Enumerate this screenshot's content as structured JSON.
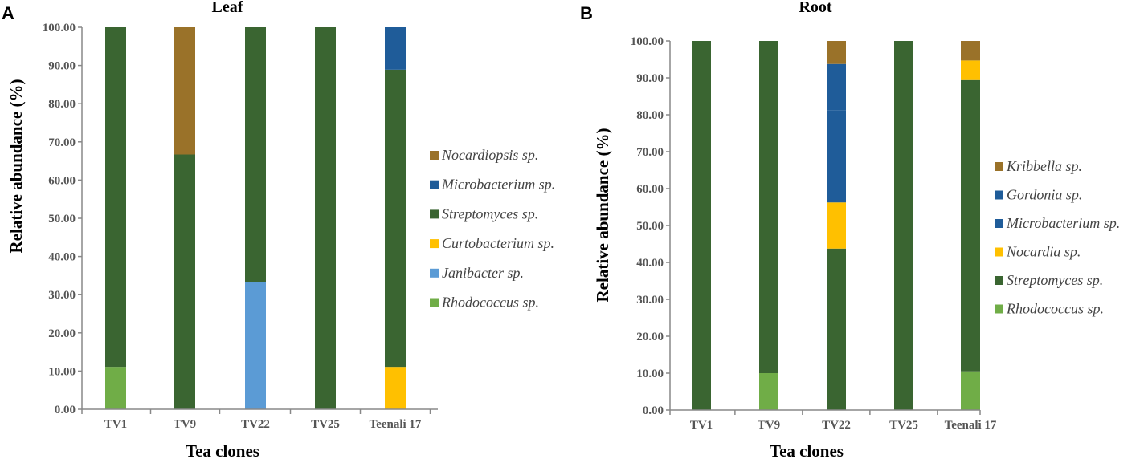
{
  "colors": {
    "Rhodococcus sp.": "#70ad47",
    "Janibacter sp.": "#5b9bd5",
    "Curtobacterium sp.": "#ffc000",
    "Streptomyces sp.": "#3a6531",
    "Microbacterium sp.": "#1f5c99",
    "Nocardiopsis sp.": "#9a7229",
    "Nocardia sp.": "#ffc000",
    "Gordonia sp.": "#1f5c99",
    "Kribbella sp.": "#9a7229"
  },
  "chart_data": [
    {
      "panel": "A",
      "type": "bar",
      "stacked": true,
      "title": "Leaf",
      "xlabel": "Tea clones",
      "ylabel": "Relative abundance  (%)",
      "ylim": [
        0,
        100
      ],
      "yticks": [
        "0.00",
        "10.00",
        "20.00",
        "30.00",
        "40.00",
        "50.00",
        "60.00",
        "70.00",
        "80.00",
        "90.00",
        "100.00"
      ],
      "categories": [
        "TV1",
        "TV9",
        "TV22",
        "TV25",
        "Teenali 17"
      ],
      "series": [
        {
          "name": "Rhodococcus sp.",
          "values": [
            11.1,
            0,
            0,
            0,
            0
          ]
        },
        {
          "name": "Janibacter sp.",
          "values": [
            0,
            0,
            33.3,
            0,
            0
          ]
        },
        {
          "name": "Curtobacterium sp.",
          "values": [
            0,
            0,
            0,
            0,
            11.1
          ]
        },
        {
          "name": "Streptomyces sp.",
          "values": [
            88.9,
            66.7,
            66.7,
            100,
            77.8
          ]
        },
        {
          "name": "Microbacterium sp.",
          "values": [
            0,
            0,
            0,
            0,
            11.1
          ]
        },
        {
          "name": "Nocardiopsis sp.",
          "values": [
            0,
            33.3,
            0,
            0,
            0
          ]
        }
      ],
      "legend_order": [
        "Nocardiopsis sp.",
        "Microbacterium sp.",
        "Streptomyces sp.",
        "Curtobacterium sp.",
        "Janibacter sp.",
        "Rhodococcus sp."
      ]
    },
    {
      "panel": "B",
      "type": "bar",
      "stacked": true,
      "title": "Root",
      "xlabel": "Tea clones",
      "ylabel": "Relative abundance  (%)",
      "ylim": [
        0,
        100
      ],
      "yticks": [
        "0.00",
        "10.00",
        "20.00",
        "30.00",
        "40.00",
        "50.00",
        "60.00",
        "70.00",
        "80.00",
        "90.00",
        "100.00"
      ],
      "categories": [
        "TV1",
        "TV9",
        "TV22",
        "TV25",
        "Teenali 17"
      ],
      "series": [
        {
          "name": "Rhodococcus sp.",
          "values": [
            0,
            10,
            0,
            0,
            10.5
          ]
        },
        {
          "name": "Streptomyces sp.",
          "values": [
            100,
            90,
            43.75,
            100,
            78.9
          ]
        },
        {
          "name": "Nocardia sp.",
          "values": [
            0,
            0,
            12.5,
            0,
            5.3
          ]
        },
        {
          "name": "Microbacterium sp.",
          "values": [
            0,
            0,
            25,
            0,
            0
          ]
        },
        {
          "name": "Gordonia sp.",
          "values": [
            0,
            0,
            12.5,
            0,
            0
          ]
        },
        {
          "name": "Kribbella sp.",
          "values": [
            0,
            0,
            6.25,
            0,
            5.3
          ]
        }
      ],
      "legend_order": [
        "Kribbella sp.",
        "Gordonia sp.",
        "Microbacterium sp.",
        "Nocardia sp.",
        "Streptomyces sp.",
        "Rhodococcus sp."
      ]
    }
  ]
}
